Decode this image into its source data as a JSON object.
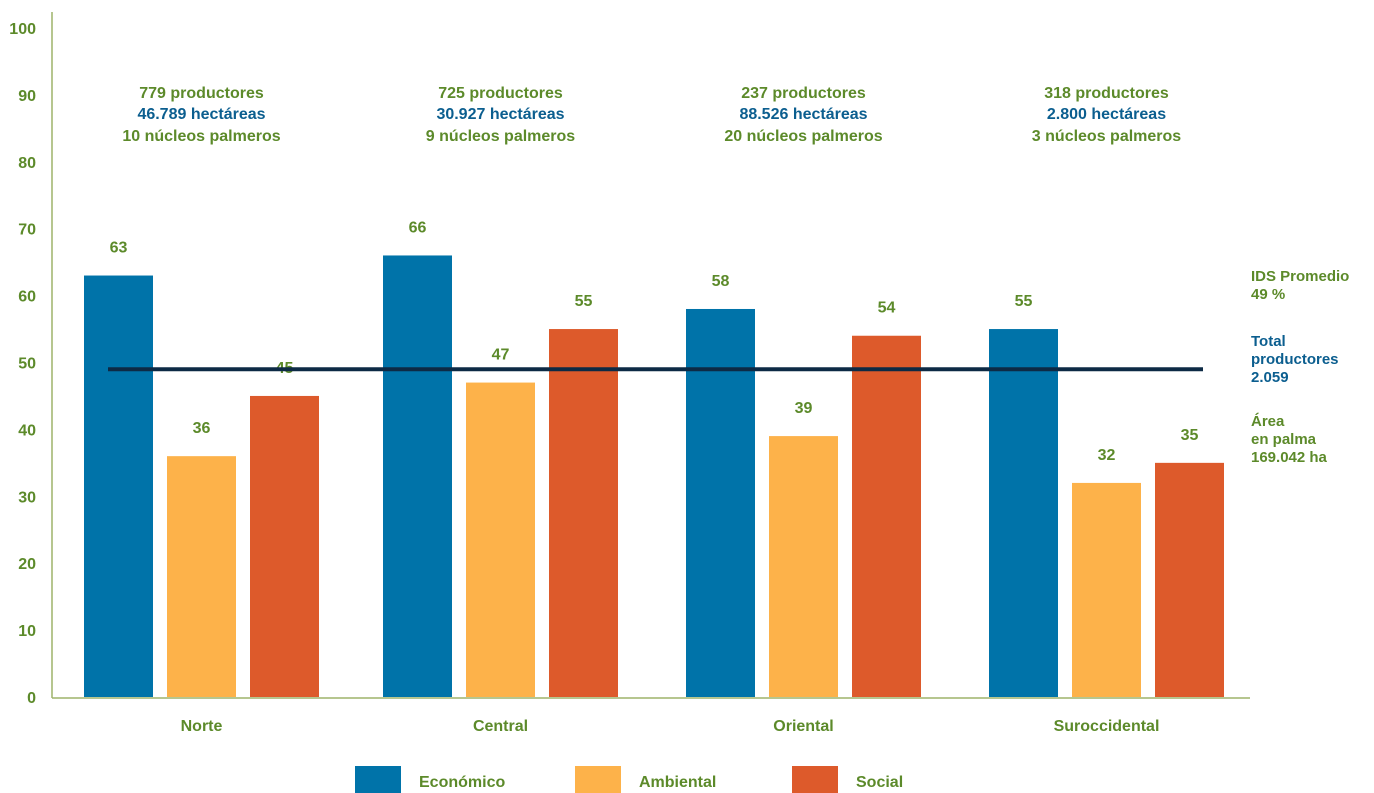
{
  "colors": {
    "economico": "#0073a9",
    "ambiental": "#fdb24a",
    "social": "#dd5a2b",
    "green_text": "#5c8a2a",
    "blue_text": "#0b5e8f",
    "avg_line": "#0d2a45",
    "axis": "#9db36a"
  },
  "chart_data": {
    "type": "bar",
    "categories": [
      "Norte",
      "Central",
      "Oriental",
      "Suroccidental"
    ],
    "series": [
      {
        "name": "Económico",
        "values": [
          63,
          66,
          58,
          55
        ]
      },
      {
        "name": "Ambiental",
        "values": [
          36,
          47,
          39,
          32
        ]
      },
      {
        "name": "Social",
        "values": [
          45,
          55,
          54,
          35
        ]
      }
    ],
    "yticks": [
      "0",
      "10",
      "20",
      "30",
      "40",
      "50",
      "60",
      "70",
      "80",
      "90",
      "100"
    ],
    "ylim": [
      0,
      100
    ],
    "average_line_value": 49,
    "legend_position": "bottom",
    "grid": false,
    "category_info": [
      {
        "productores": "779 productores",
        "hectareas": "46.789 hectáreas",
        "nucleos": "10 núcleos palmeros"
      },
      {
        "productores": "725 productores",
        "hectareas": "30.927 hectáreas",
        "nucleos": "9 núcleos palmeros"
      },
      {
        "productores": "237 productores",
        "hectareas": "88.526 hectáreas",
        "nucleos": "20 núcleos palmeros"
      },
      {
        "productores": "318 productores",
        "hectareas": "2.800 hectáreas",
        "nucleos": "3 núcleos palmeros"
      }
    ],
    "side_notes": {
      "ids": [
        "IDS Promedio",
        " 49 %"
      ],
      "productores": [
        "Total",
        "productores",
        "2.059"
      ],
      "area": [
        "Área",
        "en palma",
        "169.042 ha"
      ]
    }
  }
}
